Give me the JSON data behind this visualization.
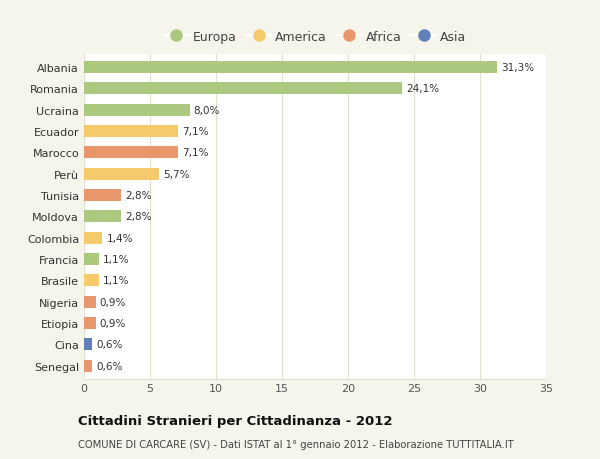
{
  "categories": [
    "Albania",
    "Romania",
    "Ucraina",
    "Ecuador",
    "Marocco",
    "Perù",
    "Tunisia",
    "Moldova",
    "Colombia",
    "Francia",
    "Brasile",
    "Nigeria",
    "Etiopia",
    "Cina",
    "Senegal"
  ],
  "values": [
    31.3,
    24.1,
    8.0,
    7.1,
    7.1,
    5.7,
    2.8,
    2.8,
    1.4,
    1.1,
    1.1,
    0.9,
    0.9,
    0.6,
    0.6
  ],
  "labels": [
    "31,3%",
    "24,1%",
    "8,0%",
    "7,1%",
    "7,1%",
    "5,7%",
    "2,8%",
    "2,8%",
    "1,4%",
    "1,1%",
    "1,1%",
    "0,9%",
    "0,9%",
    "0,6%",
    "0,6%"
  ],
  "continents": [
    "Europa",
    "Europa",
    "Europa",
    "America",
    "Africa",
    "America",
    "Africa",
    "Europa",
    "America",
    "Europa",
    "America",
    "Africa",
    "Africa",
    "Asia",
    "Africa"
  ],
  "colors": {
    "Europa": "#adc97f",
    "America": "#f5ca6a",
    "Africa": "#e8966b",
    "Asia": "#6080bb"
  },
  "xlim": [
    0,
    35
  ],
  "xticks": [
    0,
    5,
    10,
    15,
    20,
    25,
    30,
    35
  ],
  "title": "Cittadini Stranieri per Cittadinanza - 2012",
  "subtitle": "COMUNE DI CARCARE (SV) - Dati ISTAT al 1° gennaio 2012 - Elaborazione TUTTITALIA.IT",
  "outer_bg": "#f5f5eb",
  "plot_bg": "#ffffff",
  "grid_color": "#e0e0d0",
  "bar_height": 0.55,
  "bar_alpha": 1.0,
  "legend_order": [
    "Europa",
    "America",
    "Africa",
    "Asia"
  ]
}
